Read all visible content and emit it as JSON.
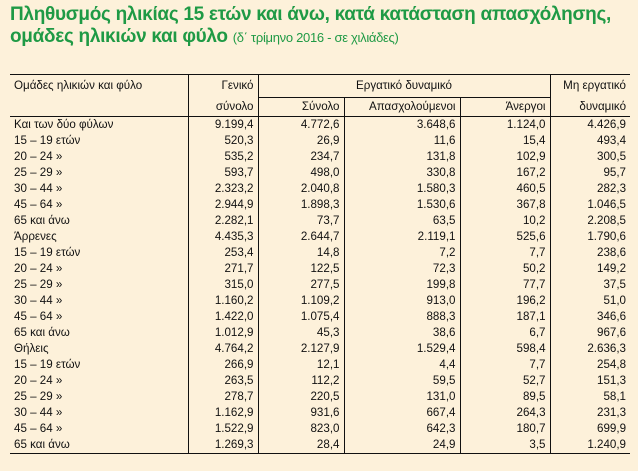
{
  "title": {
    "main": "Πληθυσμός ηλικίας 15 ετών και άνω, κατά κατάσταση απασχόλησης, ομάδες ηλικιών και φύλο",
    "subtitle": "(δ΄ τρίμηνο 2016 - σε χιλιάδες)"
  },
  "headers": {
    "groups": "Ομάδες ηλικιών και φύλο",
    "total_line1": "Γενικό",
    "total_line2": "σύνολο",
    "labor": "Εργατικό δυναμικό",
    "labor_total": "Σύνολο",
    "employed": "Απασχολούμενοι",
    "unemployed": "Άνεργοι",
    "nonlabor_line1": "Μη εργατικό",
    "nonlabor_line2": "δυναμικό"
  },
  "rows": [
    [
      "Και των δύο φύλων",
      "9.199,4",
      "4.772,6",
      "3.648,6",
      "1.124,0",
      "4.426,9"
    ],
    [
      "15 – 19 ετών",
      "520,3",
      "26,9",
      "11,6",
      "15,4",
      "493,4"
    ],
    [
      "20 – 24 »",
      "535,2",
      "234,7",
      "131,8",
      "102,9",
      "300,5"
    ],
    [
      "25 – 29 »",
      "593,7",
      "498,0",
      "330,8",
      "167,2",
      "95,7"
    ],
    [
      "30 – 44 »",
      "2.323,2",
      "2.040,8",
      "1.580,3",
      "460,5",
      "282,3"
    ],
    [
      "45 – 64 »",
      "2.944,9",
      "1.898,3",
      "1.530,6",
      "367,8",
      "1.046,5"
    ],
    [
      "65 και άνω",
      "2.282,1",
      "73,7",
      "63,5",
      "10,2",
      "2.208,5"
    ],
    [
      "Άρρενες",
      "4.435,3",
      "2.644,7",
      "2.119,1",
      "525,6",
      "1.790,6"
    ],
    [
      "15 – 19 ετών",
      "253,4",
      "14,8",
      "7,2",
      "7,7",
      "238,6"
    ],
    [
      "20 – 24 »",
      "271,7",
      "122,5",
      "72,3",
      "50,2",
      "149,2"
    ],
    [
      "25 – 29 »",
      "315,0",
      "277,5",
      "199,8",
      "77,7",
      "37,5"
    ],
    [
      "30 – 44 »",
      "1.160,2",
      "1.109,2",
      "913,0",
      "196,2",
      "51,0"
    ],
    [
      "45 – 64 »",
      "1.422,0",
      "1.075,4",
      "888,3",
      "187,1",
      "346,6"
    ],
    [
      "65 και άνω",
      "1.012,9",
      "45,3",
      "38,6",
      "6,7",
      "967,6"
    ],
    [
      "Θήλεις",
      "4.764,2",
      "2.127,9",
      "1.529,4",
      "598,4",
      "2.636,3"
    ],
    [
      "15 – 19 ετών",
      "266,9",
      "12,1",
      "4,4",
      "7,7",
      "254,8"
    ],
    [
      "20 – 24 »",
      "263,5",
      "112,2",
      "59,5",
      "52,7",
      "151,3"
    ],
    [
      "25 – 29 »",
      "278,7",
      "220,5",
      "131,0",
      "89,5",
      "58,1"
    ],
    [
      "30 – 44 »",
      "1.162,9",
      "931,6",
      "667,4",
      "264,3",
      "231,3"
    ],
    [
      "45 – 64 »",
      "1.522,9",
      "823,0",
      "642,3",
      "180,7",
      "699,9"
    ],
    [
      "65 και άνω",
      "1.269,3",
      "28,4",
      "24,9",
      "3,5",
      "1.240,9"
    ]
  ]
}
